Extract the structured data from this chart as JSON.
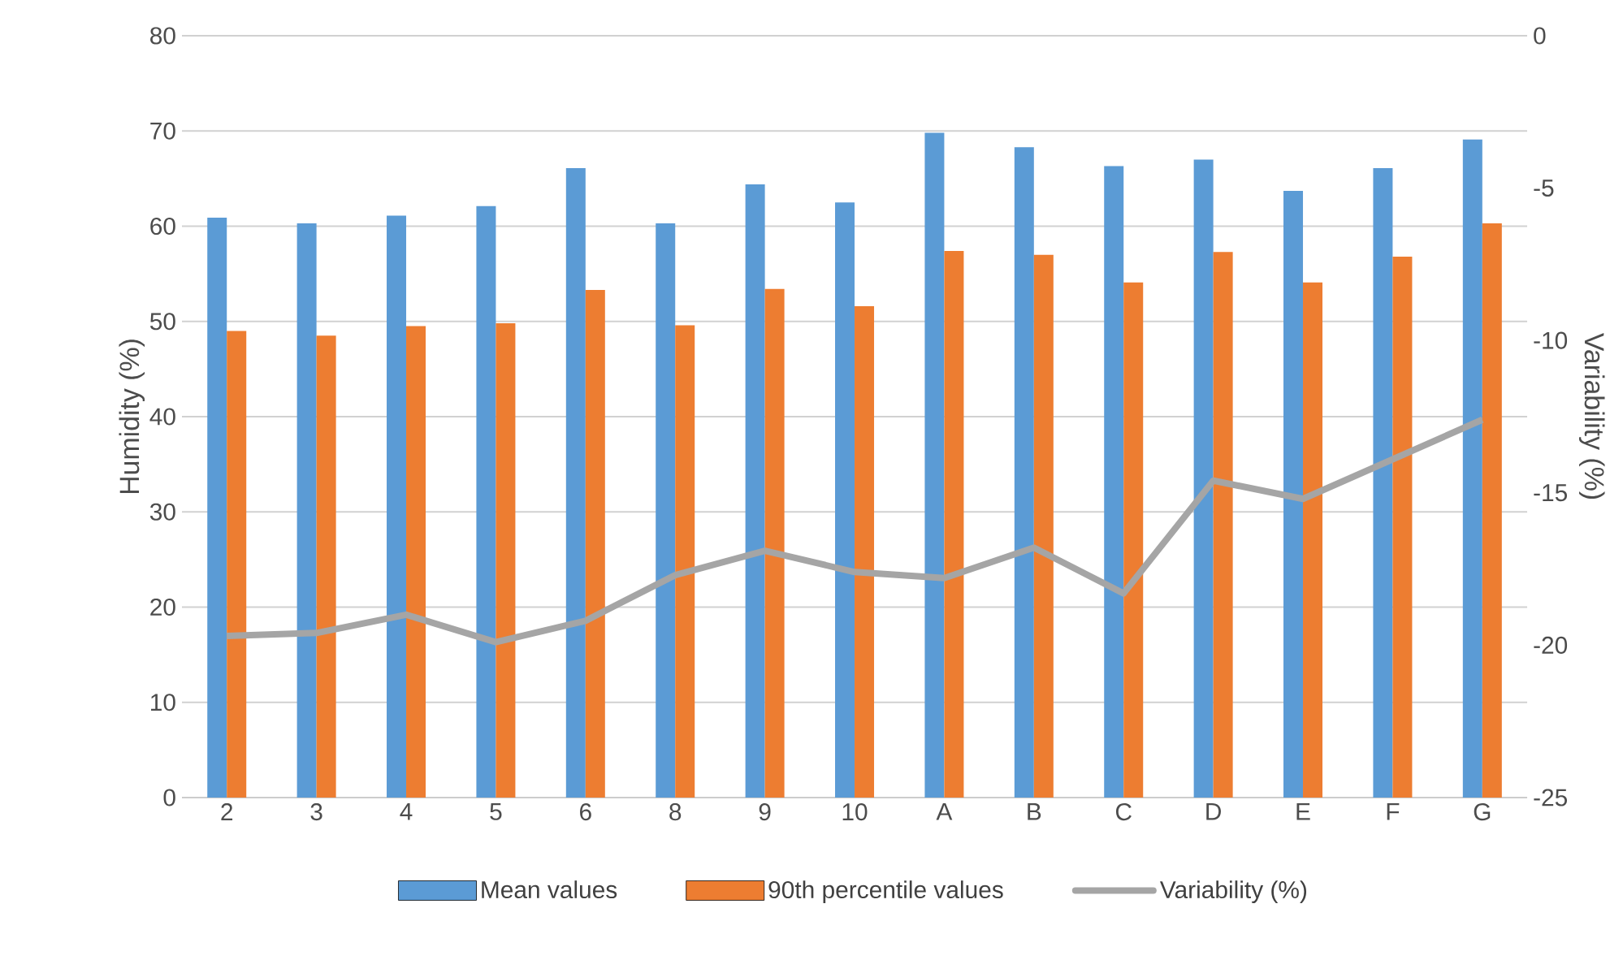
{
  "chart_data": {
    "type": "bar",
    "ylabel": "Humidity (%)",
    "y2label": "Variability (%)",
    "categories": [
      "2",
      "3",
      "4",
      "5",
      "6",
      "8",
      "9",
      "10",
      "A",
      "B",
      "C",
      "D",
      "E",
      "F",
      "G"
    ],
    "series": [
      {
        "name": "Mean values",
        "color": "#5b9bd5",
        "values": [
          60.9,
          60.3,
          61.1,
          62.1,
          66.1,
          60.3,
          64.4,
          62.5,
          69.8,
          68.3,
          66.3,
          67.0,
          63.7,
          66.1,
          69.1
        ]
      },
      {
        "name": "90th percentile values",
        "color": "#ed7d31",
        "values": [
          49.0,
          48.5,
          49.5,
          49.8,
          53.3,
          49.6,
          53.4,
          51.6,
          57.4,
          57.0,
          54.1,
          57.3,
          54.1,
          56.8,
          60.3
        ]
      },
      {
        "name": "Variability (%)",
        "type": "line",
        "axis": "y2",
        "color": "#a5a5a5",
        "marker": "none",
        "values": [
          -19.7,
          -19.6,
          -19.0,
          -19.9,
          -19.2,
          -17.7,
          -16.9,
          -17.6,
          -17.8,
          -16.8,
          -18.3,
          -14.6,
          -15.2,
          -13.9,
          -12.6
        ]
      }
    ],
    "ylim": [
      0,
      80
    ],
    "yticks": [
      0,
      10,
      20,
      30,
      40,
      50,
      60,
      70,
      80
    ],
    "y2lim": [
      -25,
      0
    ],
    "y2ticks": [
      -25,
      -20,
      -15,
      -10,
      -5,
      0
    ],
    "grid": "y",
    "legend": "bottom"
  }
}
